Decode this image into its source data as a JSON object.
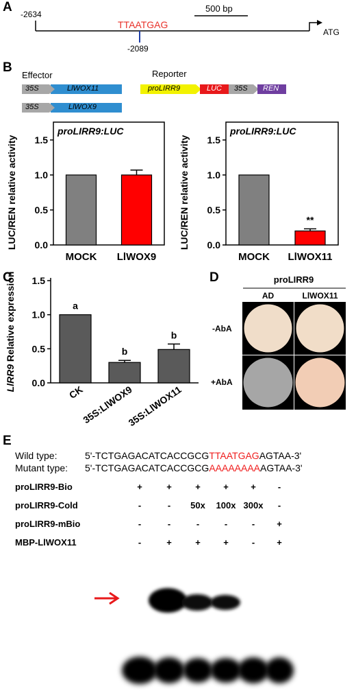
{
  "panel_A": {
    "letter": "A",
    "start": "-2634",
    "motif": "TTAATGAG",
    "motif_pos": "-2089",
    "scale": "500 bp",
    "atg": "ATG"
  },
  "panel_B": {
    "letter": "B",
    "effector_label": "Effector",
    "reporter_label": "Reporter",
    "effector1_promoter": "35S",
    "effector1_gene": "LlWOX11",
    "effector2_promoter": "35S",
    "effector2_gene": "LlWOX9",
    "reporter_promoter": "proLIRR9",
    "reporter_luc": "LUC",
    "reporter_35s": "35S",
    "reporter_ren": "REN",
    "ylabel": "LUC/REN relative activity",
    "colors": {
      "mock": "#808080",
      "treatment": "#ff0000"
    }
  },
  "chart_data": [
    {
      "type": "bar",
      "title": "proLIRR9:LUC",
      "categories": [
        "MOCK",
        "LlWOX9"
      ],
      "values": [
        1.0,
        1.0
      ],
      "errors": [
        0,
        0.07
      ],
      "ylabel": "LUC/REN relative activity",
      "ylim": [
        0,
        1.5
      ],
      "yticks": [
        "0.0",
        "0.5",
        "1.0",
        "1.5"
      ]
    },
    {
      "type": "bar",
      "title": "proLIRR9:LUC",
      "categories": [
        "MOCK",
        "LlWOX11"
      ],
      "values": [
        1.0,
        0.2
      ],
      "errors": [
        0,
        0.03
      ],
      "annotations": [
        "",
        "**"
      ],
      "ylabel": "LUC/REN relative activity",
      "ylim": [
        0,
        1.5
      ],
      "yticks": [
        "0.0",
        "0.5",
        "1.0",
        "1.5"
      ]
    },
    {
      "type": "bar",
      "categories": [
        "CK",
        "35S:LlWOX9",
        "35S:LlWOX11"
      ],
      "values": [
        1.0,
        0.3,
        0.49
      ],
      "errors": [
        0,
        0.03,
        0.08
      ],
      "annotations": [
        "a",
        "b",
        "b"
      ],
      "ylabel": "LlRR9 Relative expression",
      "ylim": [
        0,
        1.5
      ],
      "yticks": [
        "0.0",
        "0.5",
        "1.0",
        "1.5"
      ]
    }
  ],
  "panel_C": {
    "letter": "C",
    "ylabel_gene": "LlRR9",
    "ylabel_rest": " Relative expression"
  },
  "panel_D": {
    "letter": "D",
    "header": "proLIRR9",
    "col1": "AD",
    "col2": "LlWOX11",
    "row1": "-AbA",
    "row2": "+AbA"
  },
  "panel_E": {
    "letter": "E",
    "wt_label": "Wild type:",
    "wt_prefix": "5'-TCTGAGACATCACCGCG",
    "wt_motif": "TTAATGAG",
    "wt_suffix": "AGTAA-3'",
    "mut_label": "Mutant type:",
    "mut_prefix": "5'-TCTGAGACATCACCGCG",
    "mut_motif": "AAAAAAAA",
    "mut_suffix": "AGTAA-3'",
    "rows": [
      {
        "label": "proLIRR9-Bio",
        "cells": [
          "+",
          "+",
          "+",
          "+",
          "+",
          "-"
        ]
      },
      {
        "label": "proLIRR9-Cold",
        "cells": [
          "-",
          "-",
          "50x",
          "100x",
          "300x",
          "-"
        ]
      },
      {
        "label": "proLIRR9-mBio",
        "cells": [
          "-",
          "-",
          "-",
          "-",
          "-",
          "+"
        ]
      },
      {
        "label": "MBP-LlWOX11",
        "cells": [
          "-",
          "+",
          "+",
          "+",
          "-",
          "+"
        ]
      }
    ]
  }
}
